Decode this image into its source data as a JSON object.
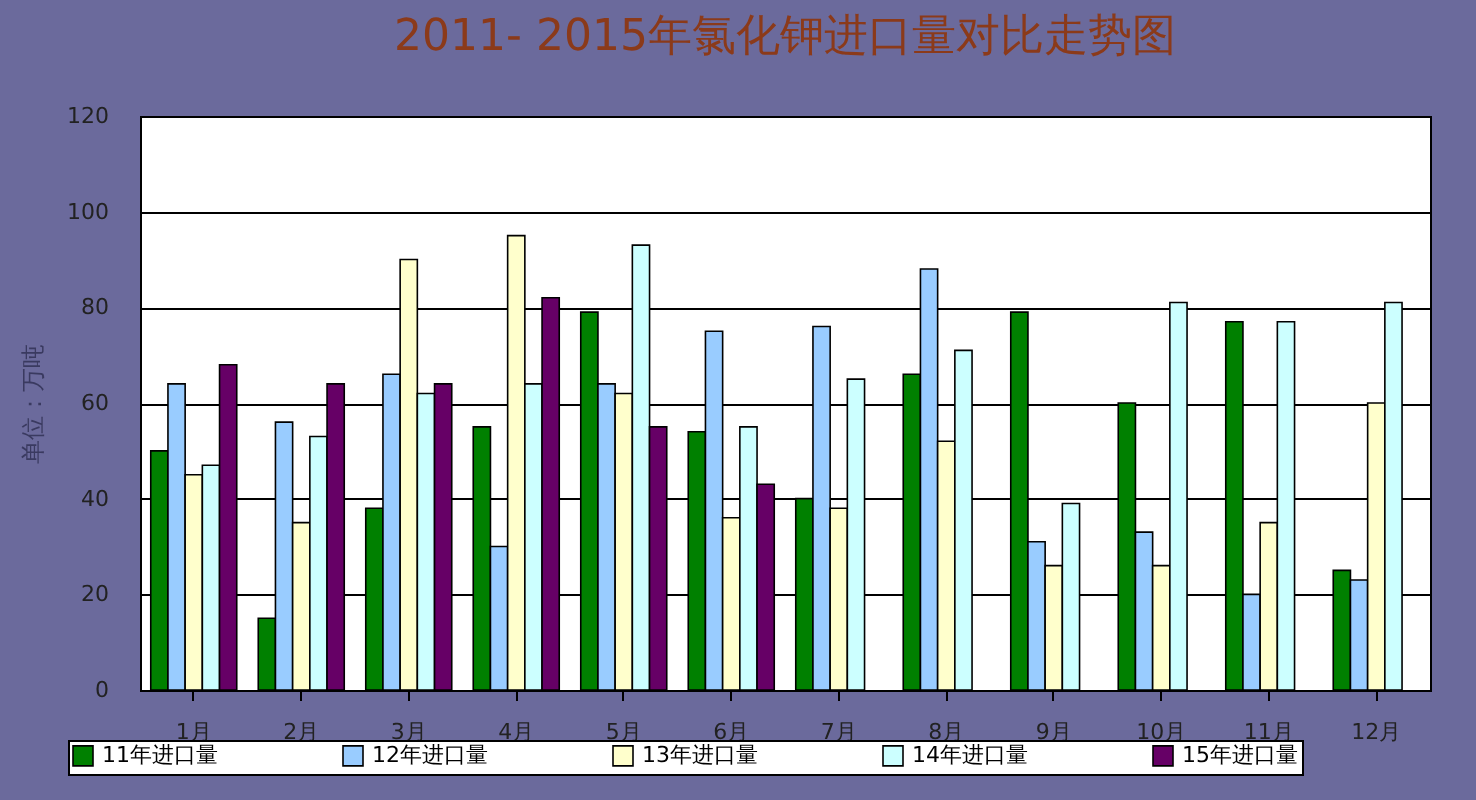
{
  "chart_data": {
    "type": "bar",
    "title": "2011- 2015年氯化钾进口量对比走势图",
    "ylabel": "单位：万吨",
    "categories": [
      "1月",
      "2月",
      "3月",
      "4月",
      "5月",
      "6月",
      "7月",
      "8月",
      "9月",
      "10月",
      "11月",
      "12月"
    ],
    "series": [
      {
        "name": "11年进口量",
        "color": "#008000",
        "values": [
          50,
          15,
          38,
          55,
          79,
          54,
          40,
          66,
          79,
          60,
          77,
          25
        ]
      },
      {
        "name": "12年进口量",
        "color": "#99ccff",
        "values": [
          64,
          56,
          66,
          30,
          64,
          75,
          76,
          88,
          31,
          33,
          20,
          23
        ]
      },
      {
        "name": "13年进口量",
        "color": "#ffffcc",
        "values": [
          45,
          35,
          90,
          95,
          62,
          36,
          38,
          52,
          26,
          26,
          35,
          60
        ]
      },
      {
        "name": "14年进口量",
        "color": "#ccffff",
        "values": [
          47,
          53,
          62,
          64,
          93,
          55,
          65,
          71,
          39,
          81,
          77,
          81
        ]
      },
      {
        "name": "15年进口量",
        "color": "#660066",
        "values": [
          68,
          64,
          64,
          82,
          55,
          43,
          null,
          null,
          null,
          null,
          null,
          null
        ]
      }
    ],
    "ylim": [
      0,
      120
    ],
    "yticks": [
      0,
      20,
      40,
      60,
      80,
      100,
      120
    ],
    "grid": "y",
    "legend": "bottom"
  }
}
